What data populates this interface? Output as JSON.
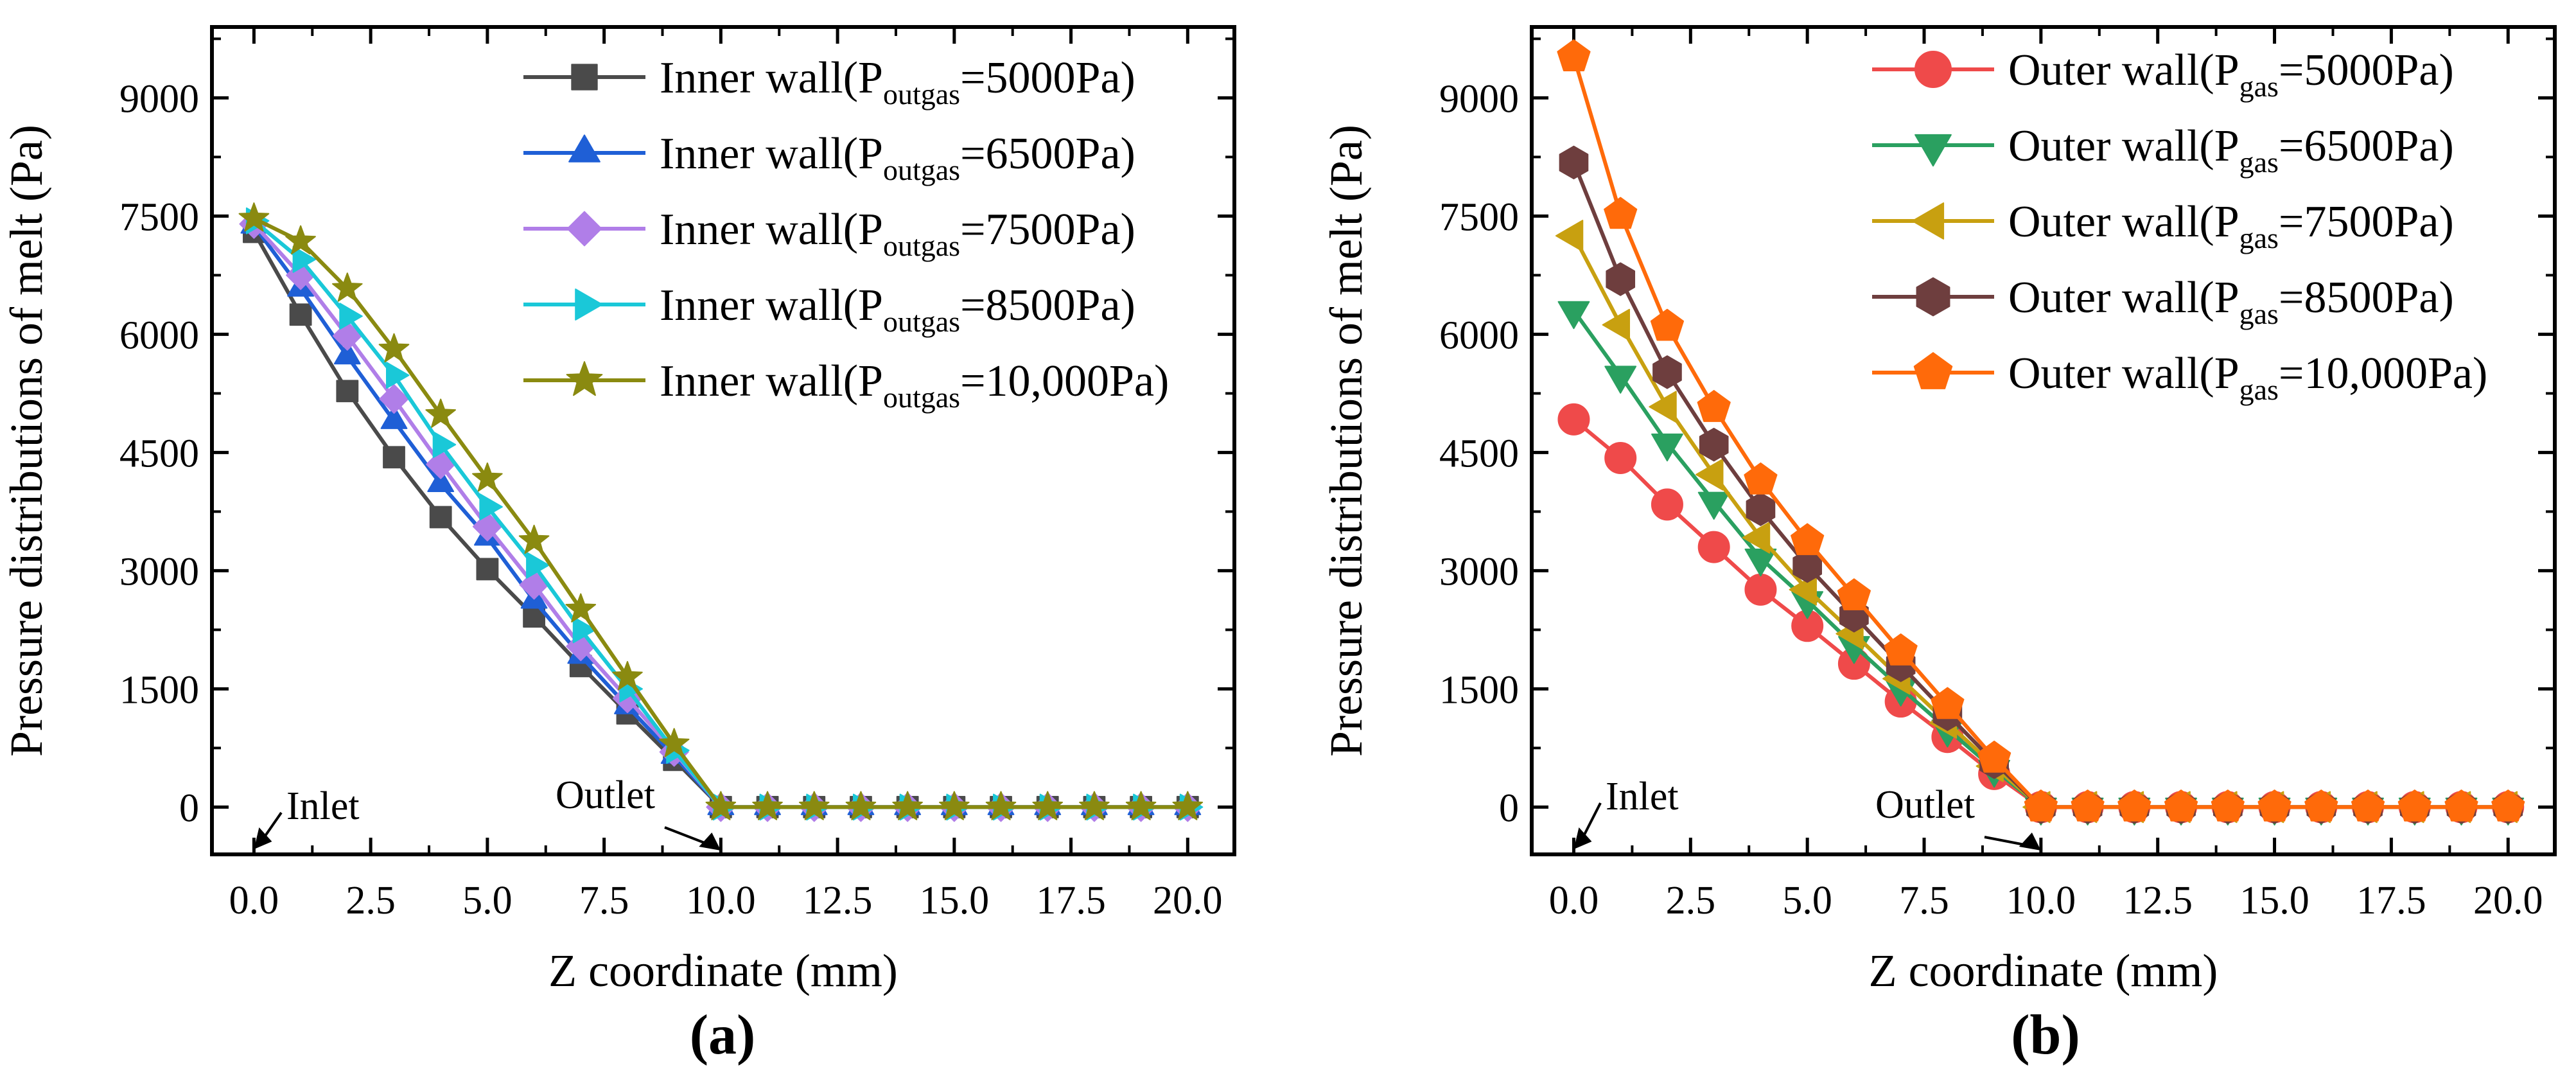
{
  "chart_data": [
    {
      "panel": "(a)",
      "type": "line",
      "xlabel": "Z coordinate (mm)",
      "ylabel": "Pressure distributions of melt (Pa)",
      "xlim": [
        -0.9,
        21.0
      ],
      "ylim": [
        -600,
        9900
      ],
      "x_ticks": [
        "0.0",
        "2.5",
        "5.0",
        "7.5",
        "10.0",
        "12.5",
        "15.0",
        "17.5",
        "20.0"
      ],
      "y_ticks": [
        "0",
        "1500",
        "3000",
        "4500",
        "6000",
        "7500",
        "9000"
      ],
      "x": [
        0,
        1,
        2,
        3,
        4,
        5,
        6,
        7,
        8,
        9,
        10,
        11,
        12,
        13,
        14,
        15,
        16,
        17,
        18,
        19,
        20
      ],
      "series": [
        {
          "name": "Inner wall(P",
          "sub": "outgas",
          "suffix": "=5000Pa)",
          "marker": "square",
          "color": "#4a4a4a",
          "values": [
            7300,
            6250,
            5280,
            4440,
            3680,
            3020,
            2420,
            1790,
            1190,
            600,
            0,
            0,
            0,
            0,
            0,
            0,
            0,
            0,
            0,
            0,
            0
          ]
        },
        {
          "name": "Inner wall(P",
          "sub": "outgas",
          "suffix": "=6500Pa)",
          "marker": "triangle-up",
          "color": "#1f5fd6",
          "values": [
            7380,
            6580,
            5720,
            4900,
            4100,
            3420,
            2620,
            1920,
            1280,
            650,
            0,
            0,
            0,
            0,
            0,
            0,
            0,
            0,
            0,
            0,
            0
          ]
        },
        {
          "name": "Inner wall(P",
          "sub": "outgas",
          "suffix": "=7500Pa)",
          "marker": "diamond",
          "color": "#b07ee8",
          "values": [
            7400,
            6750,
            5980,
            5180,
            4350,
            3560,
            2820,
            2040,
            1380,
            700,
            0,
            0,
            0,
            0,
            0,
            0,
            0,
            0,
            0,
            0,
            0
          ]
        },
        {
          "name": "Inner wall(P",
          "sub": "outgas",
          "suffix": "=8500Pa)",
          "marker": "triangle-right",
          "color": "#1ac8d8",
          "values": [
            7440,
            6950,
            6230,
            5480,
            4600,
            3810,
            3070,
            2250,
            1500,
            720,
            0,
            0,
            0,
            0,
            0,
            0,
            0,
            0,
            0,
            0,
            0
          ]
        },
        {
          "name": "Inner wall(P",
          "sub": "outgas",
          "suffix": "=10,000Pa)",
          "marker": "star",
          "color": "#8a8a10",
          "values": [
            7470,
            7180,
            6580,
            5810,
            4980,
            4170,
            3380,
            2510,
            1650,
            800,
            0,
            0,
            0,
            0,
            0,
            0,
            0,
            0,
            0,
            0,
            0
          ]
        }
      ],
      "annotations": [
        {
          "text": "Inlet"
        },
        {
          "text": "Outlet"
        }
      ]
    },
    {
      "panel": "(b)",
      "type": "line",
      "xlabel": "Z coordinate (mm)",
      "ylabel": "Pressure distributions of melt (Pa)",
      "xlim": [
        -0.9,
        21.0
      ],
      "ylim": [
        -600,
        9900
      ],
      "x_ticks": [
        "0.0",
        "2.5",
        "5.0",
        "7.5",
        "10.0",
        "12.5",
        "15.0",
        "17.5",
        "20.0"
      ],
      "y_ticks": [
        "0",
        "1500",
        "3000",
        "4500",
        "6000",
        "7500",
        "9000"
      ],
      "x": [
        0,
        1,
        2,
        3,
        4,
        5,
        6,
        7,
        8,
        9,
        10,
        11,
        12,
        13,
        14,
        15,
        16,
        17,
        18,
        19,
        20
      ],
      "series": [
        {
          "name": "Outer wall(P",
          "sub": "gas",
          "suffix": "=5000Pa)",
          "marker": "circle",
          "color": "#ef4a4a",
          "values": [
            4920,
            4430,
            3840,
            3300,
            2760,
            2300,
            1820,
            1340,
            890,
            420,
            0,
            0,
            0,
            0,
            0,
            0,
            0,
            0,
            0,
            0,
            0
          ]
        },
        {
          "name": "Outer wall(P",
          "sub": "gas",
          "suffix": "=6500Pa)",
          "marker": "triangle-down",
          "color": "#2aa060",
          "values": [
            6300,
            5480,
            4620,
            3880,
            3160,
            2620,
            2050,
            1510,
            990,
            480,
            0,
            0,
            0,
            0,
            0,
            0,
            0,
            0,
            0,
            0,
            0
          ]
        },
        {
          "name": "Outer wall(P",
          "sub": "gas",
          "suffix": "=7500Pa)",
          "marker": "triangle-left",
          "color": "#c8a010",
          "values": [
            7250,
            6120,
            5080,
            4220,
            3420,
            2760,
            2200,
            1630,
            1070,
            520,
            0,
            0,
            0,
            0,
            0,
            0,
            0,
            0,
            0,
            0,
            0
          ]
        },
        {
          "name": "Outer wall(P",
          "sub": "gas",
          "suffix": "=8500Pa)",
          "marker": "hexagon",
          "color": "#6e3e3e",
          "values": [
            8180,
            6700,
            5520,
            4600,
            3780,
            3060,
            2430,
            1800,
            1180,
            570,
            0,
            0,
            0,
            0,
            0,
            0,
            0,
            0,
            0,
            0,
            0
          ]
        },
        {
          "name": "Outer wall(P",
          "sub": "gas",
          "suffix": "=10,000Pa)",
          "marker": "pentagon",
          "color": "#ff6a0a",
          "values": [
            9520,
            7520,
            6100,
            5070,
            4150,
            3380,
            2680,
            1980,
            1300,
            620,
            0,
            0,
            0,
            0,
            0,
            0,
            0,
            0,
            0,
            0,
            0
          ]
        }
      ],
      "annotations": [
        {
          "text": "Inlet"
        },
        {
          "text": "Outlet"
        }
      ]
    }
  ]
}
